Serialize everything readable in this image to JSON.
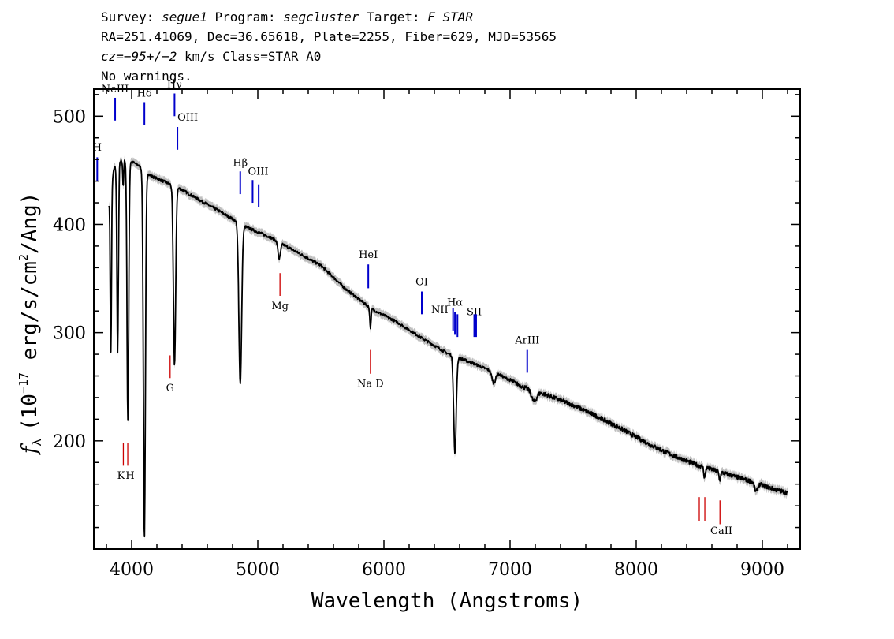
{
  "header": {
    "line1": {
      "survey_label": "Survey:",
      "survey": "segue1",
      "program_label": "Program:",
      "program": "segcluster",
      "target_label": "Target:",
      "target": "F_STAR"
    },
    "line2": "RA=251.41069, Dec=36.65618, Plate=2255, Fiber=629, MJD=53565",
    "line3": {
      "cz": "cz=−95+/−2",
      "rest": " km/s Class=STAR A0"
    },
    "line4": "No warnings."
  },
  "chart_data": {
    "type": "line",
    "xlabel": "Wavelength (Angstroms)",
    "ylabel_parts": {
      "f": "f",
      "sub": "λ",
      "pre": "(10",
      "exp1": "−17",
      "mid": " erg/s/cm",
      "exp2": "2",
      "post": "/Ang)"
    },
    "xlim": [
      3700,
      9300
    ],
    "ylim": [
      100,
      525
    ],
    "x_ticks": [
      4000,
      5000,
      6000,
      7000,
      8000,
      9000
    ],
    "x_tick_labels": [
      "4000",
      "5000",
      "6000",
      "7000",
      "8000",
      "9000"
    ],
    "y_ticks": [
      200,
      300,
      400,
      500
    ],
    "y_tick_labels": [
      "200",
      "300",
      "400",
      "500"
    ],
    "colors": {
      "spectrum": "#000000",
      "error_band": "#c0c0c0",
      "emission": "#0000cc",
      "absorption": "#cc0000"
    },
    "continuum": [
      [
        3820,
        420
      ],
      [
        3860,
        452
      ],
      [
        3900,
        458
      ],
      [
        3950,
        460
      ],
      [
        4000,
        458
      ],
      [
        4050,
        455
      ],
      [
        4150,
        445
      ],
      [
        4250,
        440
      ],
      [
        4400,
        432
      ],
      [
        4500,
        425
      ],
      [
        4700,
        412
      ],
      [
        4900,
        398
      ],
      [
        5100,
        388
      ],
      [
        5300,
        375
      ],
      [
        5500,
        362
      ],
      [
        5700,
        340
      ],
      [
        5900,
        322
      ],
      [
        6100,
        310
      ],
      [
        6300,
        295
      ],
      [
        6500,
        281
      ],
      [
        6700,
        272
      ],
      [
        6900,
        262
      ],
      [
        7100,
        250
      ],
      [
        7300,
        242
      ],
      [
        7500,
        233
      ],
      [
        7700,
        222
      ],
      [
        7900,
        210
      ],
      [
        8100,
        197
      ],
      [
        8300,
        186
      ],
      [
        8500,
        177
      ],
      [
        8700,
        170
      ],
      [
        8900,
        163
      ],
      [
        9100,
        155
      ],
      [
        9200,
        152
      ]
    ],
    "absorption_features": [
      {
        "center": 3835,
        "depth": 150,
        "width": 5
      },
      {
        "center": 3889,
        "depth": 175,
        "width": 6
      },
      {
        "center": 3933,
        "depth": 25,
        "width": 4
      },
      {
        "center": 3970,
        "depth": 240,
        "width": 7
      },
      {
        "center": 4101,
        "depth": 340,
        "width": 8
      },
      {
        "center": 4340,
        "depth": 165,
        "width": 9
      },
      {
        "center": 4861,
        "depth": 148,
        "width": 11
      },
      {
        "center": 5170,
        "depth": 15,
        "width": 10
      },
      {
        "center": 5893,
        "depth": 18,
        "width": 5
      },
      {
        "center": 6563,
        "depth": 90,
        "width": 10
      },
      {
        "center": 6870,
        "depth": 10,
        "width": 14
      },
      {
        "center": 7190,
        "depth": 10,
        "width": 20
      },
      {
        "center": 8542,
        "depth": 10,
        "width": 6
      },
      {
        "center": 8662,
        "depth": 8,
        "width": 6
      },
      {
        "center": 8950,
        "depth": 8,
        "width": 12
      }
    ],
    "emission_lines": [
      {
        "label": "H",
        "x": 3727,
        "y1": 440,
        "y2": 462,
        "label_y": 468,
        "anchor": "middle"
      },
      {
        "label": "NeIII",
        "x": 3869,
        "y1": 496,
        "y2": 517,
        "label_y": 522,
        "anchor": "middle"
      },
      {
        "label": "Hδ",
        "x": 4101,
        "y1": 492,
        "y2": 513,
        "label_y": 518,
        "anchor": "middle"
      },
      {
        "label": "Hγ",
        "x": 4340,
        "y1": 500,
        "y2": 521,
        "label_y": 526,
        "anchor": "middle"
      },
      {
        "label": "OIII",
        "x": 4363,
        "y1": 469,
        "y2": 490,
        "label_y": 496,
        "anchor": "start",
        "dx": 0
      },
      {
        "label": "Hβ",
        "x": 4861,
        "y1": 428,
        "y2": 449,
        "label_y": 454,
        "anchor": "middle"
      },
      {
        "label": "OIII",
        "x": 4959,
        "y1": 420,
        "y2": 441,
        "label_y": 446,
        "anchor": "start",
        "dx": -6
      },
      {
        "label": "OIII",
        "x": 5007,
        "y1": 416,
        "y2": 437,
        "label_y": 0,
        "anchor": "start",
        "dx": 0
      },
      {
        "label": "HeI",
        "x": 5876,
        "y1": 341,
        "y2": 363,
        "label_y": 369,
        "anchor": "middle"
      },
      {
        "label": "OI",
        "x": 6300,
        "y1": 317,
        "y2": 338,
        "label_y": 344,
        "anchor": "middle"
      },
      {
        "label": "NII",
        "x": 6548,
        "y1": 302,
        "y2": 323,
        "label_y": 318,
        "anchor": "end",
        "dx": -6
      },
      {
        "label": "Hα",
        "x": 6563,
        "y1": 298,
        "y2": 319,
        "label_y": 325,
        "anchor": "middle"
      },
      {
        "label": "NII",
        "x": 6583,
        "y1": 296,
        "y2": 317,
        "label_y": 0,
        "anchor": "start",
        "dx": 0
      },
      {
        "label": "SII",
        "x": 6716,
        "y1": 296,
        "y2": 317,
        "label_y": 316,
        "anchor": "middle"
      },
      {
        "label": "SII",
        "x": 6731,
        "y1": 296,
        "y2": 317,
        "label_y": 0,
        "anchor": "start",
        "dx": 0
      },
      {
        "label": "ArIII",
        "x": 7136,
        "y1": 263,
        "y2": 284,
        "label_y": 290,
        "anchor": "middle"
      }
    ],
    "absorption_lines": [
      {
        "label": "K",
        "x": 3934,
        "y1": 177,
        "y2": 198,
        "label_y": 172,
        "anchor": "middle",
        "dx": -3
      },
      {
        "label": "H",
        "x": 3969,
        "y1": 177,
        "y2": 198,
        "label_y": 172,
        "anchor": "middle",
        "dx": 3
      },
      {
        "label": "G",
        "x": 4305,
        "y1": 258,
        "y2": 279,
        "label_y": 253,
        "anchor": "middle"
      },
      {
        "label": "Mg",
        "x": 5176,
        "y1": 334,
        "y2": 355,
        "label_y": 329,
        "anchor": "middle"
      },
      {
        "label": "Na D",
        "x": 5893,
        "y1": 262,
        "y2": 284,
        "label_y": 257,
        "anchor": "middle"
      },
      {
        "label": "CaII",
        "x": 8500,
        "y1": 126,
        "y2": 148,
        "label_y": 121,
        "anchor": "middle",
        "dx": 28
      },
      {
        "label": "",
        "x": 8544,
        "y1": 126,
        "y2": 148
      },
      {
        "label": "",
        "x": 8664,
        "y1": 123,
        "y2": 145
      }
    ]
  }
}
